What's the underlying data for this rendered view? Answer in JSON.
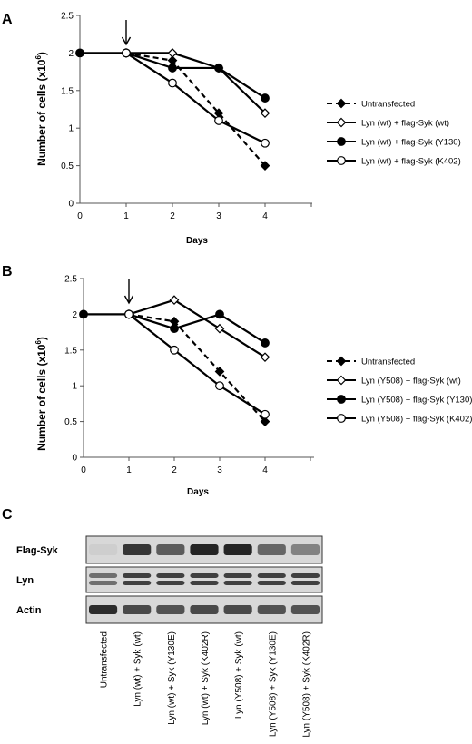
{
  "panels": {
    "a": "A",
    "b": "B",
    "c": "C"
  },
  "chart_data": [
    {
      "type": "line",
      "x": [
        0,
        1,
        2,
        3,
        4
      ],
      "xlabel": "Days",
      "ylabel": "Number of cells (x10",
      "ylabel_sup": "6",
      "ylabel_close": ")",
      "ylim": [
        0,
        2.5
      ],
      "yticks": [
        "0",
        "0.5",
        "1",
        "1.5",
        "2",
        "2.5"
      ],
      "xticks": [
        "0",
        "1",
        "2",
        "3",
        "4"
      ],
      "grid": false,
      "legend_position": "right",
      "arrow_at_day": 1,
      "series": [
        {
          "name": "Untransfected",
          "x": [
            1,
            2,
            3,
            4
          ],
          "values": [
            2,
            1.9,
            1.2,
            0.5
          ],
          "marker": "diamond-filled",
          "dash": true
        },
        {
          "name": "Lyn (wt) + flag-Syk (wt)",
          "x": [
            1,
            2,
            3,
            4
          ],
          "values": [
            2,
            2,
            1.8,
            1.2
          ],
          "marker": "diamond-open",
          "dash": false
        },
        {
          "name": "Lyn (wt) + flag-Syk (Y130)",
          "x": [
            0,
            1,
            2,
            3,
            4
          ],
          "values": [
            2,
            2,
            1.8,
            1.8,
            1.4
          ],
          "marker": "circle-filled",
          "dash": false
        },
        {
          "name": "Lyn (wt) + flag-Syk (K402)",
          "x": [
            1,
            2,
            3,
            4
          ],
          "values": [
            2,
            1.6,
            1.1,
            0.8
          ],
          "marker": "circle-open",
          "dash": false
        }
      ]
    },
    {
      "type": "line",
      "x": [
        0,
        1,
        2,
        3,
        4
      ],
      "xlabel": "Days",
      "ylabel": "Number of cells (x10",
      "ylabel_sup": "6",
      "ylabel_close": ")",
      "ylim": [
        0,
        2.5
      ],
      "yticks": [
        "0",
        "0.5",
        "1",
        "1.5",
        "2",
        "2.5"
      ],
      "xticks": [
        "0",
        "1",
        "2",
        "3",
        "4"
      ],
      "grid": false,
      "legend_position": "right",
      "arrow_at_day": 1,
      "series": [
        {
          "name": "Untransfected",
          "x": [
            1,
            2,
            3,
            4
          ],
          "values": [
            2,
            1.9,
            1.2,
            0.5
          ],
          "marker": "diamond-filled",
          "dash": true
        },
        {
          "name": "Lyn (Y508) + flag-Syk (wt)",
          "x": [
            1,
            2,
            3,
            4
          ],
          "values": [
            2,
            2.2,
            1.8,
            1.4
          ],
          "marker": "diamond-open",
          "dash": false
        },
        {
          "name": "Lyn (Y508) + flag-Syk (Y130)",
          "x": [
            0,
            1,
            2,
            3,
            4
          ],
          "values": [
            2,
            2,
            1.8,
            2,
            1.6
          ],
          "marker": "circle-filled",
          "dash": false
        },
        {
          "name": "Lyn (Y508) + flag-Syk (K402)",
          "x": [
            1,
            2,
            3,
            4
          ],
          "values": [
            2,
            1.5,
            1,
            0.6
          ],
          "marker": "circle-open",
          "dash": false
        }
      ]
    }
  ],
  "blot": {
    "rows": [
      "Flag-Syk",
      "Lyn",
      "Actin"
    ],
    "lanes": [
      "Untransfected",
      "Lyn (wt) + Syk (wt)",
      "Lyn (wt) + Syk (Y130E)",
      "Lyn (wt) + Syk (K402R)",
      "Lyn (Y508) + Syk (wt)",
      "Lyn (Y508) + Syk (Y130E)",
      "Lyn (Y508) + Syk (K402R)"
    ],
    "flag_syk_intensity": [
      0.05,
      0.85,
      0.65,
      0.95,
      0.95,
      0.6,
      0.45
    ],
    "lyn_intensity": [
      0.55,
      0.8,
      0.8,
      0.8,
      0.8,
      0.8,
      0.8
    ],
    "actin_intensity": [
      0.9,
      0.75,
      0.7,
      0.75,
      0.75,
      0.7,
      0.7
    ]
  },
  "colors": {
    "line": "#000000",
    "band": "#1a1a1a",
    "blot_bg": "#d8d8d8"
  }
}
